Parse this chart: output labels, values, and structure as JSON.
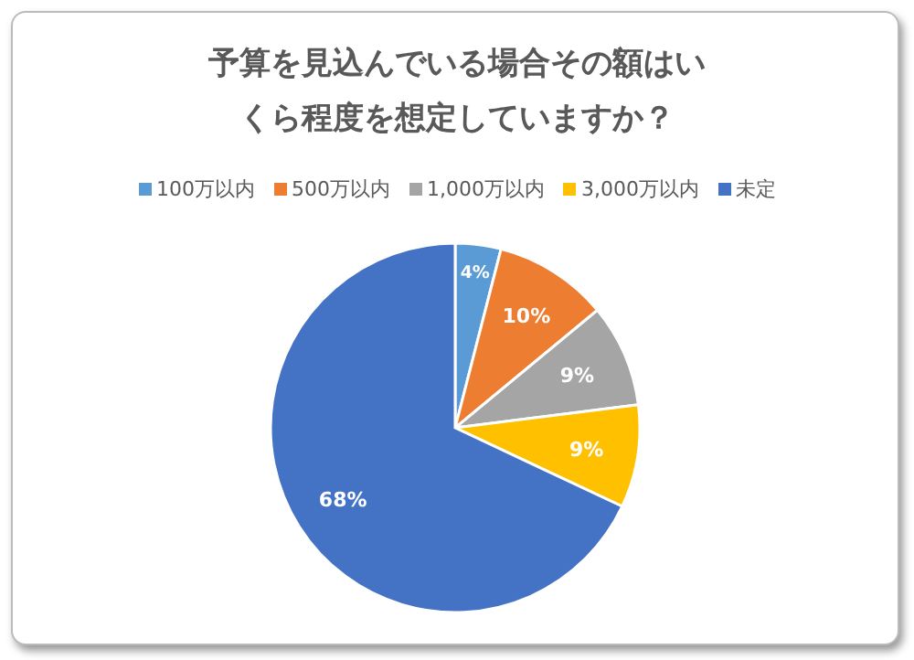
{
  "chart_data": {
    "type": "pie",
    "title": "予算を見込んでいる場合その額はいくら程度を想定していますか？",
    "categories": [
      "100万以内",
      "500万以内",
      "1,000万以内",
      "3,000万以内",
      "未定"
    ],
    "values": [
      4,
      10,
      9,
      9,
      68
    ],
    "colors": [
      "#5b9bd5",
      "#ed7d31",
      "#a5a5a5",
      "#ffc000",
      "#4472c4"
    ],
    "value_labels": [
      "4%",
      "10%",
      "9%",
      "9%",
      "68%"
    ],
    "legend": "top"
  }
}
